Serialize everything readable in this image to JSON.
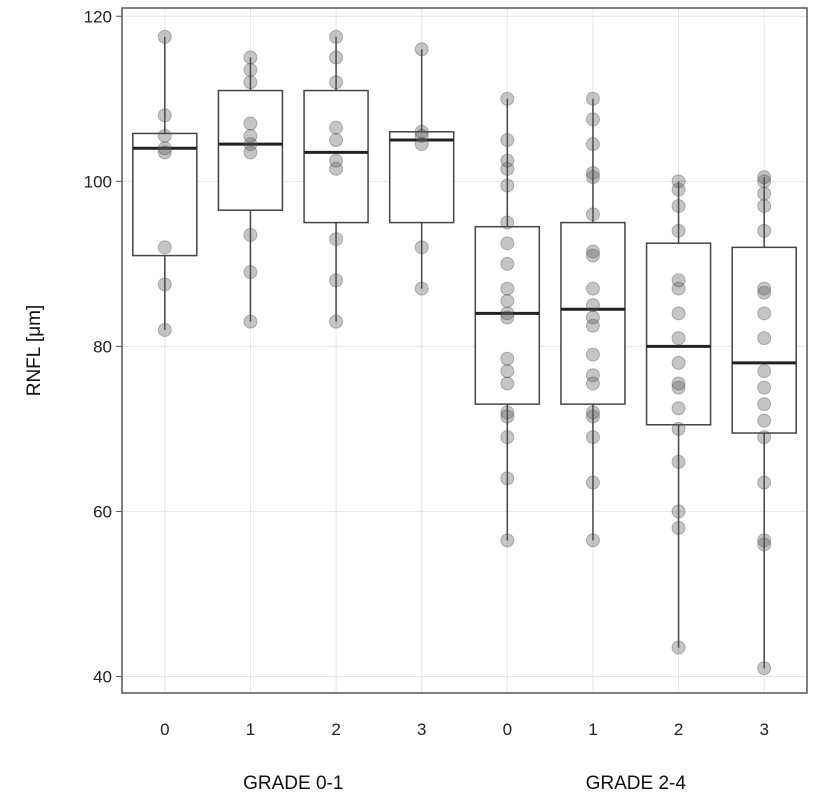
{
  "chart_data": {
    "type": "box",
    "ylabel": "RNFL [μm]",
    "ylim": [
      38,
      121
    ],
    "yticks": [
      40,
      60,
      80,
      100,
      120
    ],
    "grid": true,
    "groups": [
      {
        "label": "GRADE 0-1",
        "categories": [
          {
            "label": "0",
            "whisker_low": 82,
            "q1": 91,
            "median": 104,
            "q3": 105.8,
            "whisker_high": 117.5,
            "points": [
              82,
              87.5,
              92,
              103.5,
              104,
              105.5,
              108,
              117.5
            ]
          },
          {
            "label": "1",
            "whisker_low": 83,
            "q1": 96.5,
            "median": 104.5,
            "q3": 111,
            "whisker_high": 115,
            "points": [
              83,
              89,
              93.5,
              103.5,
              104.5,
              105.5,
              107,
              112,
              113.5,
              115
            ]
          },
          {
            "label": "2",
            "whisker_low": 83,
            "q1": 95,
            "median": 103.5,
            "q3": 111,
            "whisker_high": 117.5,
            "points": [
              83,
              88,
              93,
              101.5,
              102.5,
              105,
              106.5,
              112,
              115,
              117.5
            ]
          },
          {
            "label": "3",
            "whisker_low": 87,
            "q1": 95,
            "median": 105,
            "q3": 106,
            "whisker_high": 116,
            "points": [
              87,
              92,
              104.5,
              105.5,
              106,
              116
            ]
          }
        ]
      },
      {
        "label": "GRADE 2-4",
        "categories": [
          {
            "label": "0",
            "whisker_low": 56.5,
            "q1": 73,
            "median": 84,
            "q3": 94.5,
            "whisker_high": 110,
            "points": [
              56.5,
              64,
              69,
              71.5,
              72,
              75.5,
              77,
              78.5,
              83.5,
              84,
              85.5,
              87,
              90,
              92.5,
              95,
              99.5,
              101.5,
              102.5,
              105,
              110
            ]
          },
          {
            "label": "1",
            "whisker_low": 56.5,
            "q1": 73,
            "median": 84.5,
            "q3": 95,
            "whisker_high": 110,
            "points": [
              56.5,
              63.5,
              69,
              71.5,
              72,
              75.5,
              76.5,
              79,
              82.5,
              83.5,
              85,
              87,
              91,
              91.5,
              96,
              100.5,
              101,
              104.5,
              107.5,
              110
            ]
          },
          {
            "label": "2",
            "whisker_low": 43.5,
            "q1": 70.5,
            "median": 80,
            "q3": 92.5,
            "whisker_high": 100,
            "points": [
              43.5,
              58,
              60,
              66,
              70,
              72.5,
              75,
              75.5,
              78,
              81,
              84,
              87,
              88,
              94,
              97,
              99,
              100
            ]
          },
          {
            "label": "3",
            "whisker_low": 41,
            "q1": 69.5,
            "median": 78,
            "q3": 92,
            "whisker_high": 100.5,
            "points": [
              41,
              56,
              56.5,
              63.5,
              69,
              71,
              73,
              75,
              77,
              81,
              84,
              86.5,
              87,
              94,
              97,
              98.5,
              100,
              100.5
            ]
          }
        ]
      }
    ]
  }
}
